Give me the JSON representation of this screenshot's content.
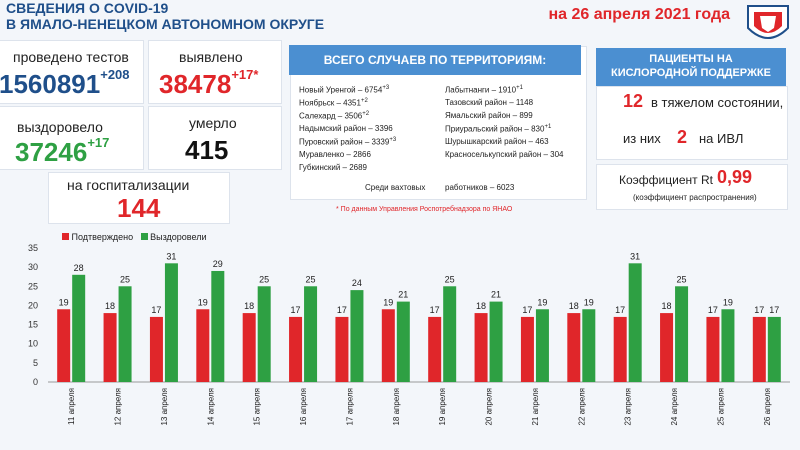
{
  "header": {
    "title_line1": "СВЕДЕНИЯ О COVID-19",
    "title_line2": "В ЯМАЛО-НЕНЕЦКОМ АВТОНОМНОМ ОКРУГЕ",
    "date": "на 26 апреля 2021 года"
  },
  "stats": {
    "tests_label": "проведено тестов",
    "tests_value": "1560891",
    "tests_delta": "+208",
    "detected_label": "выявлено",
    "detected_value": "38478",
    "detected_delta": "+17*",
    "recovered_label": "выздоровело",
    "recovered_value": "37246",
    "recovered_delta": "+17",
    "died_label": "умерло",
    "died_value": "415",
    "hosp_label": "на госпитализации",
    "hosp_value": "144"
  },
  "territories": {
    "heading": "ВСЕГО СЛУЧАЕВ ПО ТЕРРИТОРИЯМ:",
    "left": [
      {
        "name": "Новый Уренгой – 6754",
        "delta": "+3"
      },
      {
        "name": "Ноябрьск – 4351",
        "delta": "+2"
      },
      {
        "name": "Салехард – 3506",
        "delta": "+2"
      },
      {
        "name": "Надымский район – 3396",
        "delta": ""
      },
      {
        "name": "Пуровский район – 3339",
        "delta": "+3"
      },
      {
        "name": "Муравленко – 2866",
        "delta": ""
      },
      {
        "name": "Губкинский – 2689",
        "delta": ""
      }
    ],
    "right": [
      {
        "name": "Лабытнанги – 1910",
        "delta": "+1"
      },
      {
        "name": "Тазовский район – 1148",
        "delta": ""
      },
      {
        "name": "Ямальский район – 899",
        "delta": ""
      },
      {
        "name": "Приуральский район – 830",
        "delta": "+1"
      },
      {
        "name": "Шурышкарский район – 463",
        "delta": ""
      },
      {
        "name": "Красноселькупский район – 304",
        "delta": ""
      }
    ],
    "shift_label": "Среди вахтовых",
    "shift_value": "работников – 6023",
    "note": "* По данным Управления Роспотребнадзора по ЯНАО"
  },
  "oxygen": {
    "heading_line1": "ПАЦИЕНТЫ НА",
    "heading_line2": "КИСЛОРОДНОЙ ПОДДЕРЖКЕ",
    "severe_value": "12",
    "severe_label": "в тяжелом состоянии,",
    "ivl_prefix": "из них",
    "ivl_value": "2",
    "ivl_label": "на ИВЛ",
    "rt_label": "Коэффициент Rt",
    "rt_value": "0,99",
    "rt_sub": "(коэффициент распространения)"
  },
  "chart_data": {
    "type": "bar",
    "categories": [
      "11 апреля",
      "12 апреля",
      "13 апреля",
      "14 апреля",
      "15 апреля",
      "16 апреля",
      "17 апреля",
      "18 апреля",
      "19 апреля",
      "20 апреля",
      "21 апреля",
      "22 апреля",
      "23 апреля",
      "24 апреля",
      "25 апреля",
      "26 апреля"
    ],
    "series": [
      {
        "name": "Подтверждено",
        "color": "#e0262a",
        "values": [
          19,
          18,
          17,
          19,
          18,
          17,
          17,
          19,
          17,
          18,
          17,
          18,
          17,
          18,
          17,
          17
        ]
      },
      {
        "name": "Выздоровели",
        "color": "#2ea043",
        "values": [
          28,
          25,
          31,
          29,
          25,
          25,
          24,
          21,
          25,
          21,
          19,
          19,
          31,
          25,
          19,
          17
        ]
      }
    ],
    "ylim": [
      0,
      35
    ],
    "yticks": [
      "0",
      "5",
      "10",
      "15",
      "20",
      "25",
      "30",
      "35"
    ],
    "legend_position": "top-left",
    "grid": false
  }
}
